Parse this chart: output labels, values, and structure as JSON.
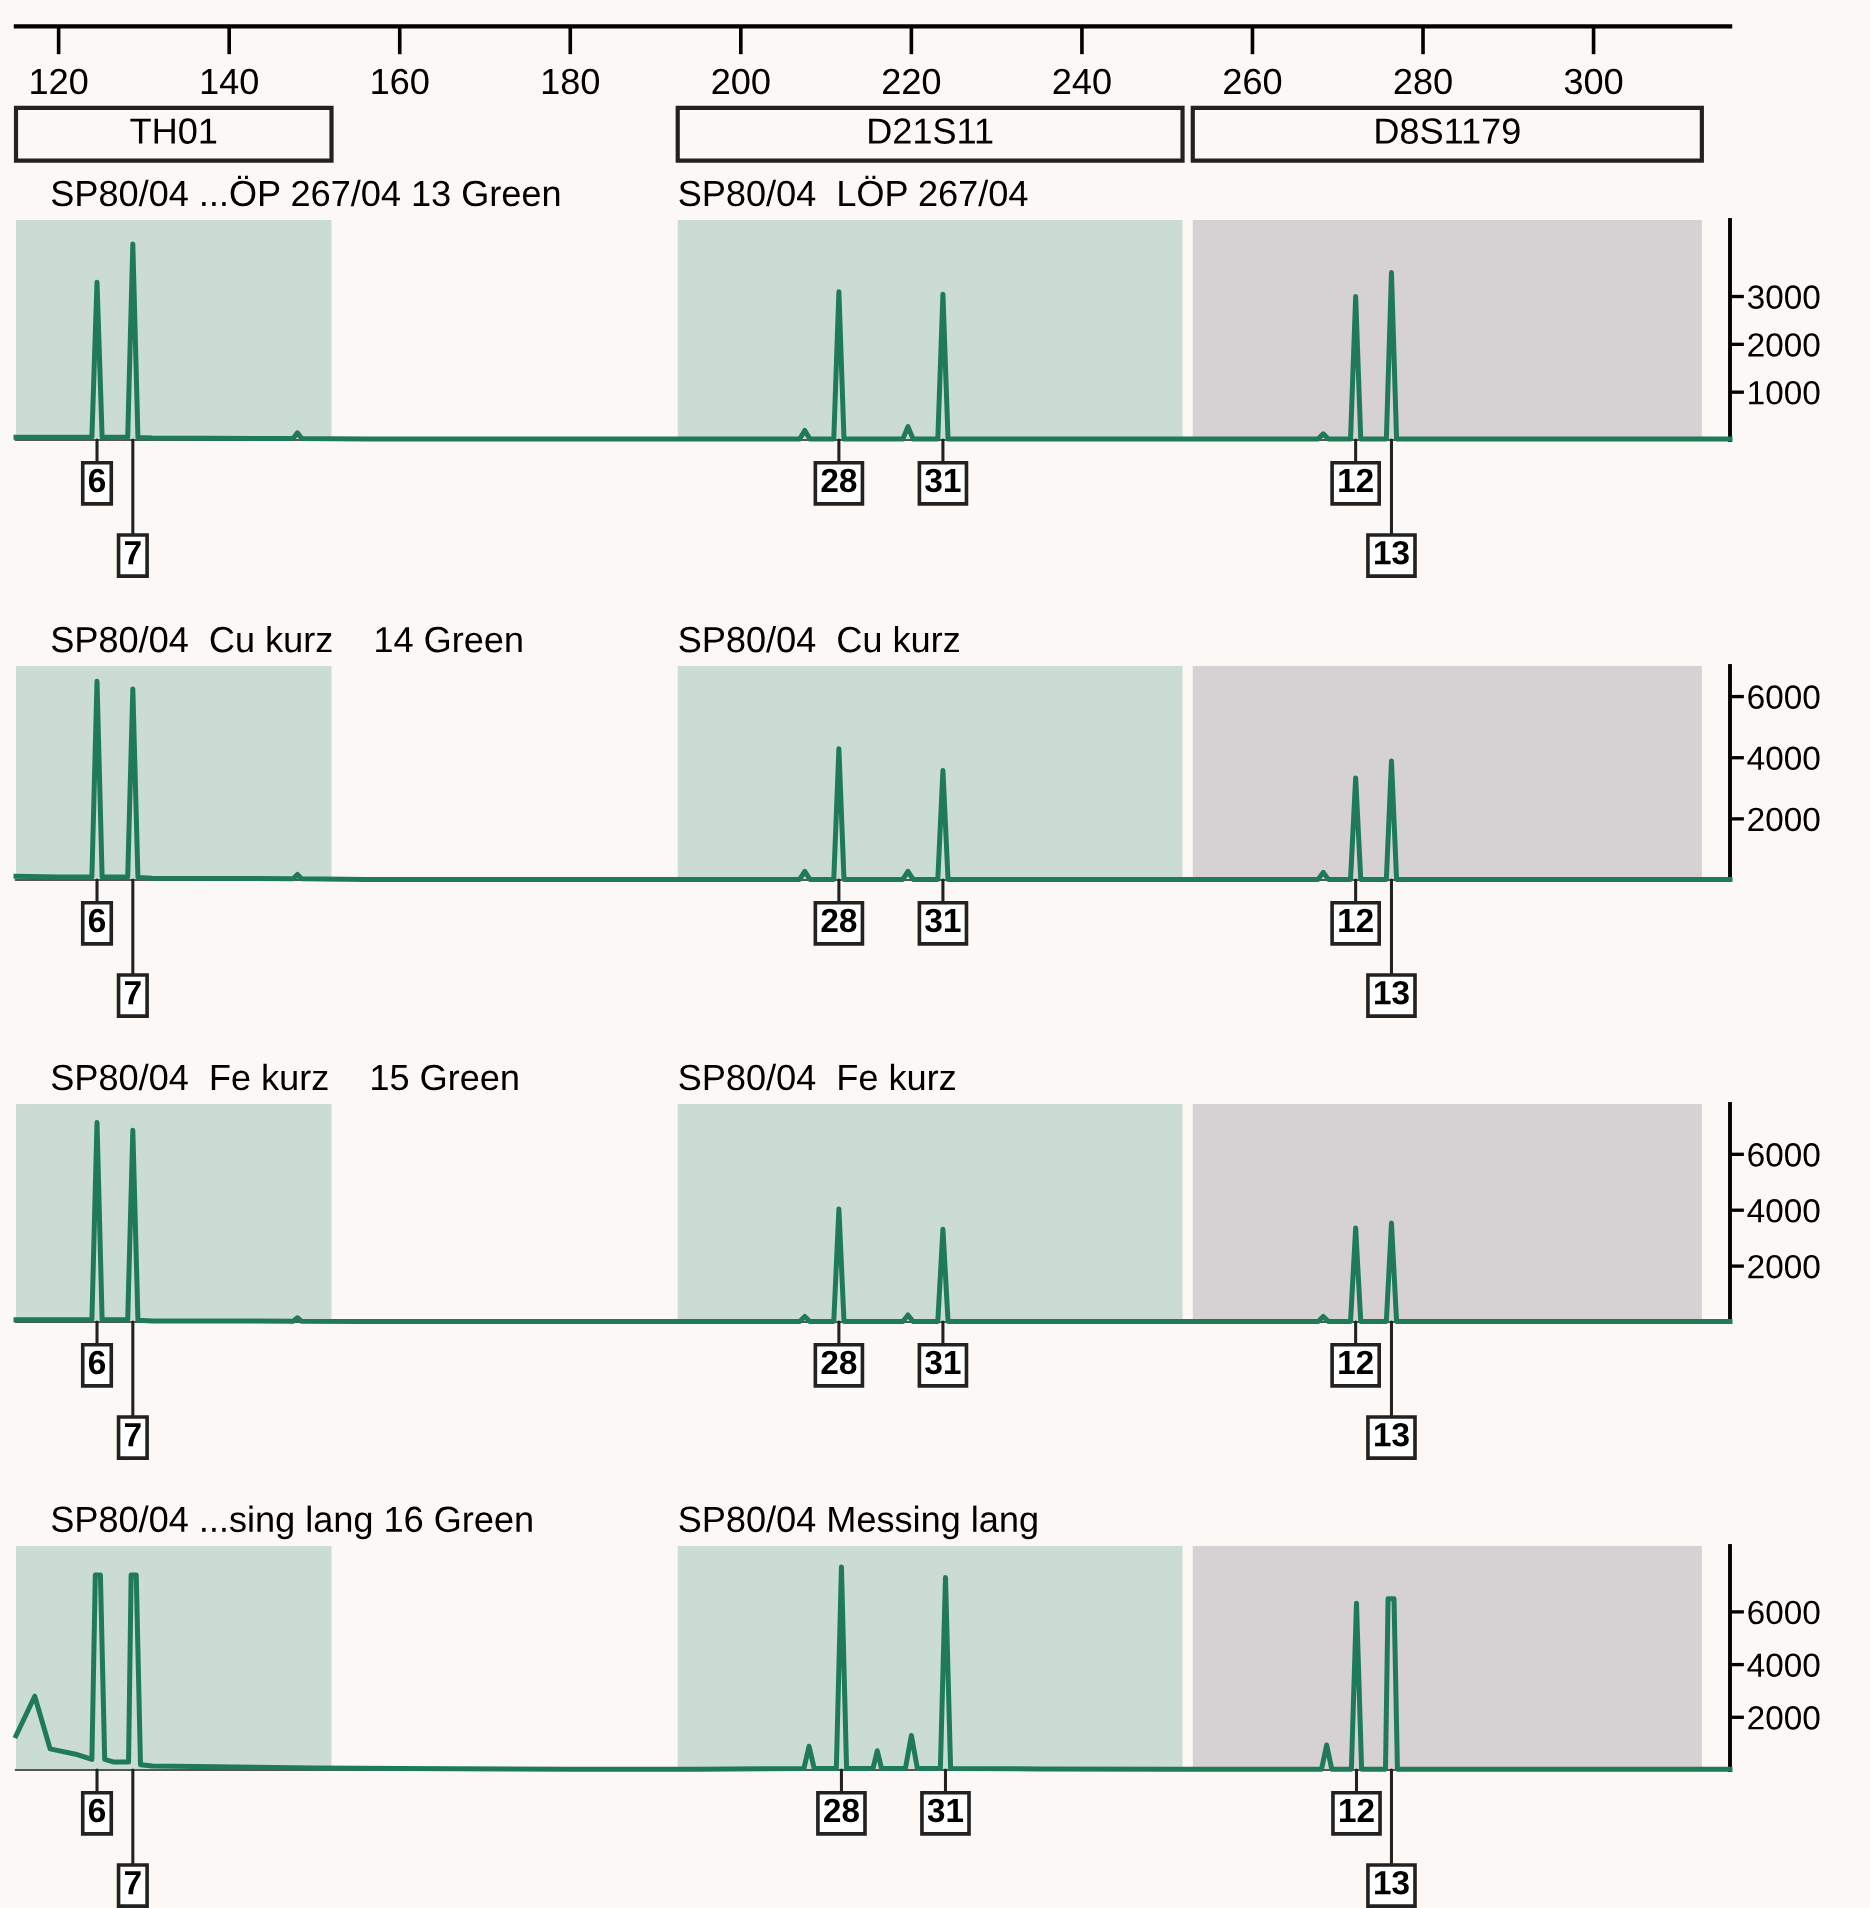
{
  "chart_data": [
    {
      "type": "line",
      "title": "SP80/04 ...ÖP 267/04 13 Green",
      "subtitle": "SP80/04  LÖP 267/04",
      "xlim": [
        115,
        316
      ],
      "xticks": [
        120,
        140,
        160,
        180,
        200,
        220,
        240,
        260,
        280,
        300
      ],
      "ylim": [
        0,
        4600
      ],
      "yticks": [
        1000,
        2000,
        3000
      ],
      "bands": [
        {
          "axis": "x",
          "from": 115,
          "to": 152,
          "label": "TH01",
          "color": "#cbdcd3"
        },
        {
          "axis": "x",
          "from": 192.6,
          "to": 251.8,
          "label": "D21S11",
          "color": "#cbdcd3"
        },
        {
          "axis": "x",
          "from": 253,
          "to": 312.7,
          "label": "D8S1179",
          "color": "#d6d1d3"
        }
      ],
      "series": [
        {
          "color": "#1f7a5a",
          "x": [
            115,
            120,
            123.9,
            124.5,
            125.1,
            126.5,
            128.1,
            128.7,
            129.3,
            131,
            147.5,
            148,
            148.5,
            156,
            195,
            206.9,
            207.5,
            208.1,
            210.9,
            211.5,
            212.1,
            219,
            219.6,
            220.2,
            223.1,
            223.7,
            224.3,
            235,
            267.7,
            268.3,
            268.9,
            271.5,
            272.1,
            272.7,
            275.7,
            276.3,
            276.9,
            290,
            316
          ],
          "values": [
            60,
            60,
            60,
            3300,
            60,
            60,
            60,
            4100,
            50,
            40,
            30,
            150,
            30,
            20,
            20,
            20,
            200,
            20,
            20,
            3100,
            20,
            20,
            280,
            20,
            20,
            3050,
            20,
            20,
            20,
            130,
            20,
            20,
            3000,
            20,
            20,
            3500,
            20,
            20,
            20
          ]
        }
      ],
      "annotations": [
        {
          "text": "6",
          "x": 124.5,
          "y": 0
        },
        {
          "text": "7",
          "x": 128.7,
          "y": 0
        },
        {
          "text": "28",
          "x": 211.5,
          "y": 0
        },
        {
          "text": "31",
          "x": 223.7,
          "y": 0
        },
        {
          "text": "12",
          "x": 272.1,
          "y": 0
        },
        {
          "text": "13",
          "x": 276.3,
          "y": 0
        }
      ]
    },
    {
      "type": "line",
      "title": "SP80/04  Cu kurz    14 Green",
      "subtitle": "SP80/04  Cu kurz",
      "xlim": [
        115,
        316
      ],
      "tick_labels": "y",
      "ylim": [
        0,
        7000
      ],
      "yticks": [
        2000,
        4000,
        6000
      ],
      "bands": [
        {
          "axis": "x",
          "from": 115,
          "to": 152,
          "color": "#cbdcd3"
        },
        {
          "axis": "x",
          "from": 192.6,
          "to": 251.8,
          "color": "#cbdcd3"
        },
        {
          "axis": "x",
          "from": 253,
          "to": 312.7,
          "color": "#d6d1d3"
        }
      ],
      "series": [
        {
          "color": "#1f7a5a",
          "x": [
            115,
            120,
            123.9,
            124.5,
            125.1,
            126.5,
            128.1,
            128.7,
            129.3,
            131,
            147.5,
            148,
            148.5,
            156,
            195,
            206.9,
            207.5,
            208.1,
            210.9,
            211.5,
            212.1,
            219,
            219.6,
            220.2,
            223.1,
            223.7,
            224.3,
            235,
            267.7,
            268.3,
            268.9,
            271.5,
            272.1,
            272.7,
            275.7,
            276.3,
            276.9,
            290,
            316
          ],
          "values": [
            120,
            100,
            100,
            6500,
            100,
            100,
            100,
            6250,
            80,
            60,
            40,
            180,
            40,
            20,
            20,
            20,
            280,
            20,
            20,
            4290,
            20,
            20,
            280,
            20,
            20,
            3580,
            20,
            20,
            20,
            250,
            20,
            20,
            3340,
            20,
            20,
            3890,
            20,
            20,
            20
          ]
        }
      ],
      "annotations": [
        {
          "text": "6",
          "x": 124.5,
          "y": 0
        },
        {
          "text": "7",
          "x": 128.7,
          "y": 0
        },
        {
          "text": "28",
          "x": 211.5,
          "y": 0
        },
        {
          "text": "31",
          "x": 223.7,
          "y": 0
        },
        {
          "text": "12",
          "x": 272.1,
          "y": 0
        },
        {
          "text": "13",
          "x": 276.3,
          "y": 0
        }
      ]
    },
    {
      "type": "line",
      "title": "SP80/04  Fe kurz    15 Green",
      "subtitle": "SP80/04  Fe kurz",
      "xlim": [
        115,
        316
      ],
      "tick_labels": "y",
      "ylim": [
        0,
        7800
      ],
      "yticks": [
        2000,
        4000,
        6000
      ],
      "bands": [
        {
          "axis": "x",
          "from": 115,
          "to": 152,
          "color": "#cbdcd3"
        },
        {
          "axis": "x",
          "from": 192.6,
          "to": 251.8,
          "color": "#cbdcd3"
        },
        {
          "axis": "x",
          "from": 253,
          "to": 312.7,
          "color": "#d6d1d3"
        }
      ],
      "series": [
        {
          "color": "#1f7a5a",
          "x": [
            115,
            120,
            123.9,
            124.5,
            125.1,
            126.5,
            128.1,
            128.7,
            129.3,
            131,
            147.5,
            148,
            148.5,
            156,
            195,
            206.9,
            207.5,
            208.1,
            210.9,
            211.5,
            212.1,
            219,
            219.6,
            220.2,
            223.1,
            223.7,
            224.3,
            235,
            267.7,
            268.3,
            268.9,
            271.5,
            272.1,
            272.7,
            275.7,
            276.3,
            276.9,
            290,
            316
          ],
          "values": [
            80,
            80,
            80,
            7140,
            80,
            80,
            80,
            6860,
            60,
            40,
            30,
            150,
            30,
            20,
            20,
            20,
            200,
            20,
            20,
            4040,
            20,
            20,
            250,
            20,
            20,
            3320,
            20,
            20,
            20,
            200,
            20,
            20,
            3360,
            20,
            20,
            3540,
            20,
            20,
            20
          ]
        }
      ],
      "annotations": [
        {
          "text": "6",
          "x": 124.5,
          "y": 0
        },
        {
          "text": "7",
          "x": 128.7,
          "y": 0
        },
        {
          "text": "28",
          "x": 211.5,
          "y": 0
        },
        {
          "text": "31",
          "x": 223.7,
          "y": 0
        },
        {
          "text": "12",
          "x": 272.1,
          "y": 0
        },
        {
          "text": "13",
          "x": 276.3,
          "y": 0
        }
      ]
    },
    {
      "type": "line",
      "title": "SP80/04 ...sing lang 16 Green",
      "subtitle": "SP80/04 Messing lang",
      "xlim": [
        115,
        316
      ],
      "tick_labels": "y",
      "ylim": [
        0,
        8500
      ],
      "yticks": [
        2000,
        4000,
        6000
      ],
      "bands": [
        {
          "axis": "x",
          "from": 115,
          "to": 152,
          "color": "#cbdcd3"
        },
        {
          "axis": "x",
          "from": 192.6,
          "to": 251.8,
          "color": "#cbdcd3"
        },
        {
          "axis": "x",
          "from": 253,
          "to": 312.7,
          "color": "#d6d1d3"
        }
      ],
      "series": [
        {
          "color": "#1f7a5a",
          "x": [
            115,
            117.2,
            119,
            122,
            123.9,
            124.3,
            124.9,
            125.4,
            126.5,
            128.2,
            128.5,
            129.1,
            129.6,
            131,
            150,
            160,
            180,
            195,
            207.4,
            208,
            208.6,
            211.2,
            211.8,
            212.4,
            215.5,
            216,
            216.5,
            219.3,
            220,
            220.7,
            223.4,
            224,
            224.6,
            235,
            250,
            268.1,
            268.7,
            269.3,
            271.6,
            272.2,
            272.8,
            275.6,
            275.9,
            276.6,
            277,
            290,
            316
          ],
          "values": [
            1300,
            2800,
            800,
            600,
            400,
            7400,
            7400,
            400,
            300,
            300,
            7400,
            7400,
            200,
            150,
            80,
            60,
            30,
            30,
            60,
            900,
            60,
            60,
            7700,
            60,
            60,
            730,
            60,
            60,
            1310,
            60,
            60,
            7300,
            60,
            40,
            30,
            30,
            950,
            30,
            30,
            6330,
            30,
            30,
            6500,
            6500,
            30,
            30,
            30
          ]
        }
      ],
      "annotations": [
        {
          "text": "6",
          "x": 124.5,
          "y": 0
        },
        {
          "text": "7",
          "x": 128.7,
          "y": 0
        },
        {
          "text": "28",
          "x": 211.8,
          "y": 0
        },
        {
          "text": "31",
          "x": 224,
          "y": 0
        },
        {
          "text": "12",
          "x": 272.2,
          "y": 0
        },
        {
          "text": "13",
          "x": 276.3,
          "y": 0
        }
      ]
    }
  ]
}
